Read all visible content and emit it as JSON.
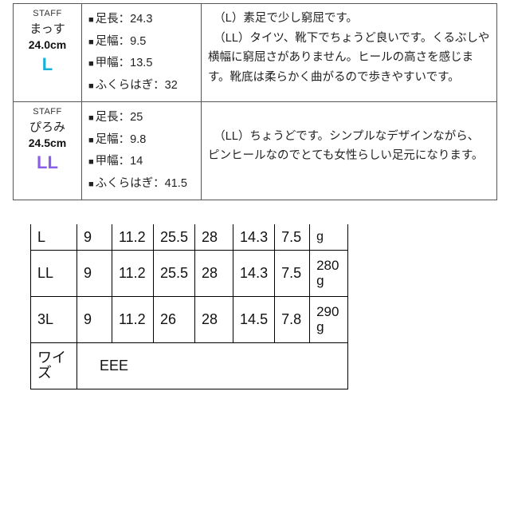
{
  "staff_reviews": [
    {
      "label": "STAFF",
      "name": "まっす",
      "foot_cm": "24.0cm",
      "size": "L",
      "size_class": "size-L",
      "meas": {
        "foot_length": "足長：24.3",
        "foot_width": "足幅：9.5",
        "instep": "甲幅：13.5",
        "calf": "ふくらはぎ：32"
      },
      "comment": "　（L）素足で少し窮屈です。\n　（LL）タイツ、靴下でちょうど良いです。くるぶしや横幅に窮屈さがありません。ヒールの高さを感じます。靴底は柔らかく曲がるので歩きやすいです。"
    },
    {
      "label": "STAFF",
      "name": "ぴろみ",
      "foot_cm": "24.5cm",
      "size": "LL",
      "size_class": "size-LL",
      "meas": {
        "foot_length": "足長：25",
        "foot_width": "足幅：9.8",
        "instep": "甲幅：14",
        "calf": "ふくらはぎ：41.5"
      },
      "comment": "\n　（LL）ちょうどです。シンプルなデザインながら、ピンヒールなのでとても女性らしい足元になります。"
    }
  ],
  "spec_table": {
    "rows": [
      {
        "cut": true,
        "size": "L",
        "a": "9",
        "b": "11.2",
        "c": "25.5",
        "d": "28",
        "e": "14.3",
        "f": "7.5",
        "g_top": "",
        "g_bot": "g"
      },
      {
        "cut": false,
        "size": "LL",
        "a": "9",
        "b": "11.2",
        "c": "25.5",
        "d": "28",
        "e": "14.3",
        "f": "7.5",
        "g_top": "280",
        "g_bot": "g"
      },
      {
        "cut": false,
        "size": "3L",
        "a": "9",
        "b": "11.2",
        "c": "26",
        "d": "28",
        "e": "14.5",
        "f": "7.8",
        "g_top": "290",
        "g_bot": "g"
      }
    ],
    "wize_label_1": "ワイ",
    "wize_label_2": "ズ",
    "wize_value": "EEE"
  }
}
